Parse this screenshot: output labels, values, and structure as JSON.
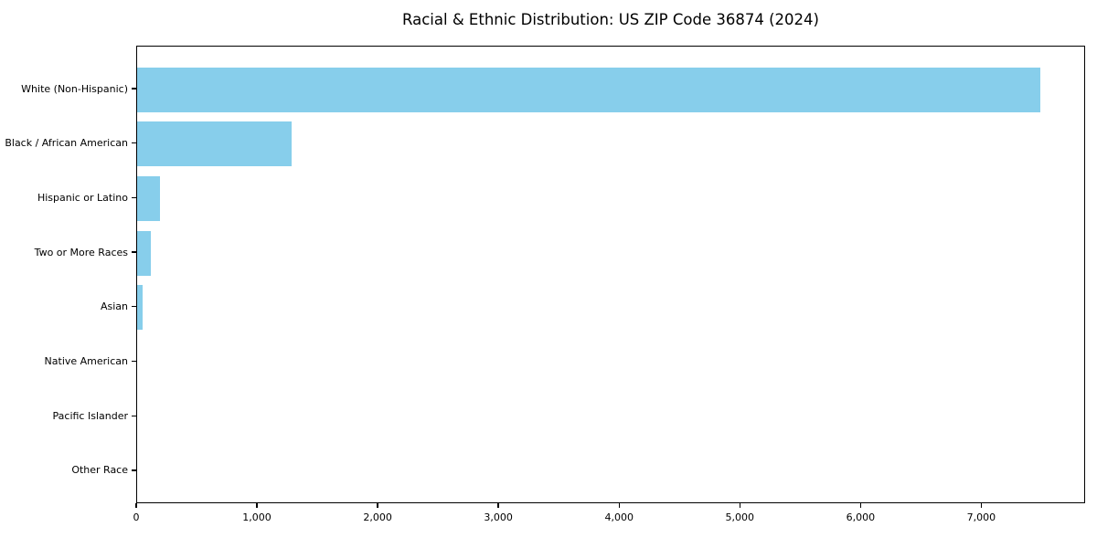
{
  "chart_data": {
    "type": "bar",
    "orientation": "horizontal",
    "title": "Racial & Ethnic Distribution: US ZIP Code 36874 (2024)",
    "xlabel": "",
    "ylabel": "",
    "categories": [
      "White (Non-Hispanic)",
      "Black / African American",
      "Hispanic or Latino",
      "Two or More Races",
      "Asian",
      "Native American",
      "Pacific Islander",
      "Other Race"
    ],
    "values": [
      7480,
      1280,
      190,
      115,
      48,
      0,
      0,
      0
    ],
    "xlim": [
      0,
      7860
    ],
    "xticks": [
      0,
      1000,
      2000,
      3000,
      4000,
      5000,
      6000,
      7000
    ],
    "xtick_labels": [
      "0",
      "1,000",
      "2,000",
      "3,000",
      "4,000",
      "5,000",
      "6,000",
      "7,000"
    ],
    "bar_color": "#87CEEB",
    "grid": false,
    "legend": null
  }
}
